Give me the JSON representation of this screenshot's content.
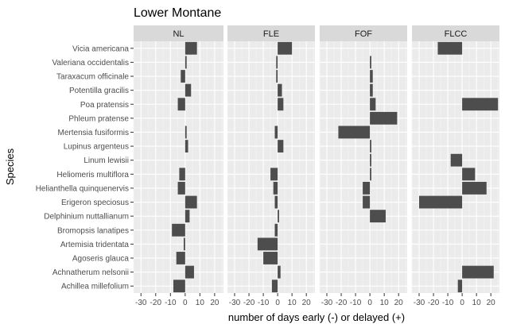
{
  "chart_data": {
    "type": "bar",
    "orientation": "horizontal",
    "title": "Lower Montane",
    "xlabel": "number of days early (-) or delayed (+)",
    "ylabel": "Species",
    "xlim": [
      -35,
      26
    ],
    "x_ticks": [
      -30,
      -20,
      -10,
      0,
      10,
      20
    ],
    "x_tick_labels": [
      "-30",
      "-20",
      "-10",
      "0",
      "10",
      "20"
    ],
    "grid": true,
    "bar_color": "#4d4d4d",
    "categories": [
      "Vicia americana",
      "Valeriana occidentalis",
      "Taraxacum officinale",
      "Potentilla gracilis",
      "Poa pratensis",
      "Phleum pratense",
      "Mertensia fusiformis",
      "Lupinus argenteus",
      "Linum lewisii",
      "Heliomeris multiflora",
      "Helianthella quinquenervis",
      "Erigeron speciosus",
      "Delphinium nuttallianum",
      "Bromopsis lanatipes",
      "Artemisia tridentata",
      "Agoseris glauca",
      "Achnatherum nelsonii",
      "Achillea millefolium"
    ],
    "facets": [
      {
        "name": "NL",
        "values": [
          8,
          1,
          -3,
          4,
          -5,
          0,
          1,
          2,
          0,
          -4,
          -5,
          8,
          3,
          -9,
          -1,
          -6,
          6,
          -8
        ]
      },
      {
        "name": "FLE",
        "values": [
          10,
          -1,
          -1,
          3,
          4,
          0,
          -2,
          4,
          0,
          -5,
          -3,
          -2,
          1,
          -2,
          -14,
          -10,
          2,
          -4
        ]
      },
      {
        "name": "FOF",
        "values": [
          0,
          1,
          2,
          2,
          4,
          19,
          -22,
          1,
          1,
          1,
          -5,
          -5,
          11,
          0,
          0,
          0,
          0,
          0
        ]
      },
      {
        "name": "FLCC",
        "values": [
          -17,
          0,
          0,
          0,
          25,
          0,
          0,
          0,
          -8,
          9,
          17,
          -30,
          0,
          0,
          0,
          0,
          22,
          -3
        ]
      }
    ]
  }
}
